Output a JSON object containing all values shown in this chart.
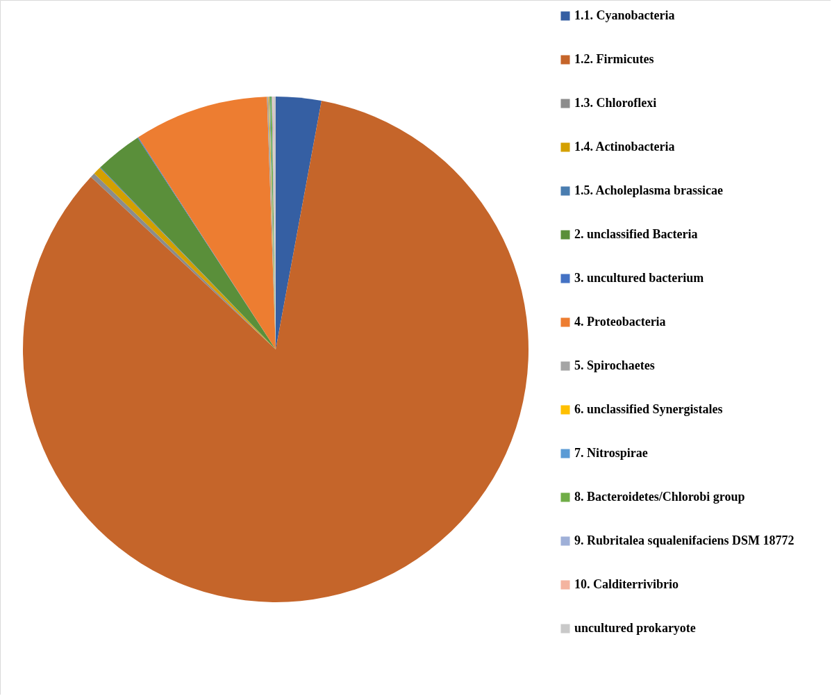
{
  "chart_data": {
    "type": "pie",
    "categories": [
      "1.1. Cyanobacteria",
      "1.2. Firmicutes",
      "1.3. Chloroflexi",
      "1.4. Actinobacteria",
      "1.5. Acholeplasma brassicae",
      "2. unclassified Bacteria",
      "3. uncultured bacterium",
      "4. Proteobacteria",
      "5. Spirochaetes",
      "6. unclassified Synergistales",
      "7. Nitrospirae",
      "8. Bacteroidetes/Chlorobi group",
      "9. Rubritalea squalenifaciens DSM 18772",
      "10. Calditerrivibrio",
      "uncultured prokaryote"
    ],
    "values": [
      2.9,
      84.05,
      0.3,
      0.5,
      0.05,
      3.0,
      0.05,
      8.6,
      0.1,
      0.05,
      0.05,
      0.1,
      0.05,
      0.05,
      0.15
    ],
    "colors": [
      "#355fa3",
      "#c5652a",
      "#8c8c8c",
      "#d4a000",
      "#4a7db0",
      "#5a8f3a",
      "#4472c4",
      "#ed7d31",
      "#a5a5a5",
      "#ffc000",
      "#5b9bd5",
      "#70ad47",
      "#9fb0d8",
      "#f4b4a0",
      "#c9c9c9"
    ],
    "legend": "right"
  }
}
